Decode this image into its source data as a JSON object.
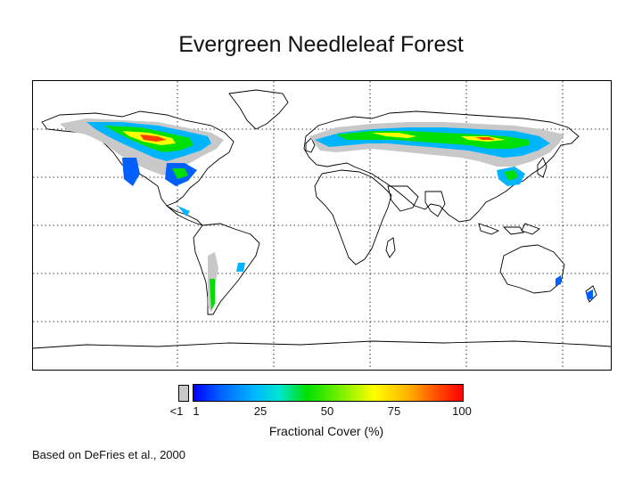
{
  "title": "Evergreen Needleleaf Forest",
  "legend": {
    "low_label": "<1",
    "ticks": [
      "1",
      "25",
      "50",
      "75",
      "100"
    ],
    "axis_label": "Fractional Cover (%)",
    "low_color": "#c8c8c8",
    "ramp_colors": [
      "#0000ff",
      "#00b4ff",
      "#00e000",
      "#ffff00",
      "#ff8000",
      "#ff0000"
    ]
  },
  "credit": "Based on DeFries et al., 2000",
  "map": {
    "projection": "equirectangular",
    "gridlines": "dotted",
    "land_outline_color": "#000000"
  }
}
